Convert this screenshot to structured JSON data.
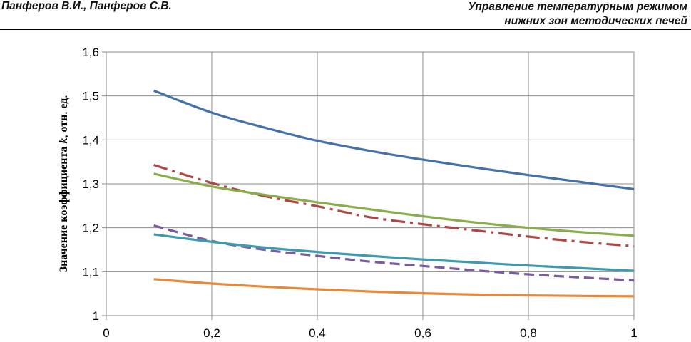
{
  "header": {
    "authors": "Панферов В.И., Панферов С.В.",
    "title_line1": "Управление температурным режимом",
    "title_line2": "нижних зон методических печей"
  },
  "chart_data": {
    "type": "line",
    "title": "",
    "xlabel": "",
    "ylabel_prefix": "Значение коэффициента ",
    "ylabel_var": "k",
    "ylabel_suffix": ", отн. ед.",
    "xlim": [
      0,
      1
    ],
    "ylim": [
      1,
      1.6
    ],
    "x_ticks": [
      0,
      0.2,
      0.4,
      0.6,
      0.8,
      1
    ],
    "x_tick_labels": [
      "0",
      "0,2",
      "0,4",
      "0,6",
      "0,8",
      "1"
    ],
    "y_ticks": [
      1,
      1.1,
      1.2,
      1.3,
      1.4,
      1.5,
      1.6
    ],
    "y_tick_labels": [
      "1",
      "1,1",
      "1,2",
      "1,3",
      "1,4",
      "1,5",
      "1,6"
    ],
    "grid": true,
    "legend": "none",
    "series": [
      {
        "name": "blue",
        "color": "#4472a8",
        "dash": "solid",
        "x": [
          0.09,
          0.2,
          0.3,
          0.4,
          0.5,
          0.6,
          0.7,
          0.8,
          0.9,
          1.0
        ],
        "y": [
          1.512,
          1.462,
          1.428,
          1.398,
          1.375,
          1.355,
          1.337,
          1.32,
          1.304,
          1.288
        ]
      },
      {
        "name": "red",
        "color": "#b04545",
        "dash": "dashdot",
        "x": [
          0.09,
          0.2,
          0.3,
          0.4,
          0.5,
          0.6,
          0.7,
          0.8,
          0.9,
          1.0
        ],
        "y": [
          1.343,
          1.302,
          1.272,
          1.249,
          1.224,
          1.208,
          1.194,
          1.18,
          1.168,
          1.158
        ]
      },
      {
        "name": "green",
        "color": "#8aad4c",
        "dash": "solid",
        "x": [
          0.09,
          0.2,
          0.3,
          0.4,
          0.5,
          0.6,
          0.7,
          0.8,
          0.9,
          1.0
        ],
        "y": [
          1.323,
          1.294,
          1.275,
          1.258,
          1.242,
          1.226,
          1.212,
          1.2,
          1.19,
          1.182
        ]
      },
      {
        "name": "purple",
        "color": "#7a5c9e",
        "dash": "dashed",
        "x": [
          0.09,
          0.2,
          0.3,
          0.4,
          0.5,
          0.6,
          0.7,
          0.8,
          0.9,
          1.0
        ],
        "y": [
          1.205,
          1.17,
          1.15,
          1.136,
          1.123,
          1.113,
          1.103,
          1.094,
          1.087,
          1.08
        ]
      },
      {
        "name": "teal",
        "color": "#3e9aae",
        "dash": "solid",
        "x": [
          0.09,
          0.2,
          0.3,
          0.4,
          0.5,
          0.6,
          0.7,
          0.8,
          0.9,
          1.0
        ],
        "y": [
          1.185,
          1.168,
          1.155,
          1.145,
          1.136,
          1.128,
          1.121,
          1.114,
          1.108,
          1.102
        ]
      },
      {
        "name": "orange",
        "color": "#e7883a",
        "dash": "solid",
        "x": [
          0.09,
          0.2,
          0.3,
          0.4,
          0.5,
          0.6,
          0.7,
          0.8,
          0.9,
          1.0
        ],
        "y": [
          1.083,
          1.073,
          1.066,
          1.06,
          1.055,
          1.051,
          1.048,
          1.046,
          1.045,
          1.044
        ]
      }
    ]
  }
}
